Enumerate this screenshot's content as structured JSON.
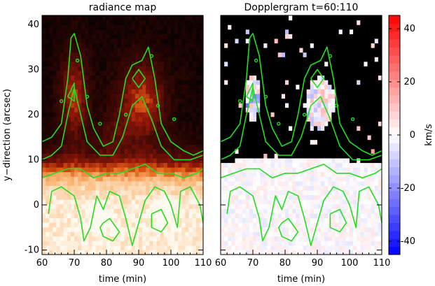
{
  "chart_data": [
    {
      "type": "heatmap",
      "title": "radiance map",
      "xlabel": "time (min)",
      "ylabel": "y−direction (arcsec)",
      "xlim": [
        60,
        110
      ],
      "ylim": [
        -11,
        42
      ],
      "x_ticks": [
        60,
        70,
        80,
        90,
        100,
        110
      ],
      "y_ticks": [
        -10,
        0,
        10,
        20,
        30,
        40
      ],
      "colormap": "black-red-orange-white",
      "contour_color": "#22dd22"
    },
    {
      "type": "heatmap",
      "title": "Dopplergram t=60:110",
      "xlabel": "time (min)",
      "xlim": [
        60,
        110
      ],
      "ylim": [
        -11,
        42
      ],
      "x_ticks": [
        60,
        70,
        80,
        90,
        100,
        110
      ],
      "y_ticks": [
        -10,
        0,
        10,
        20,
        30,
        40
      ],
      "colormap": "blue-white-red",
      "contour_color": "#22dd22",
      "colorbar": {
        "label": "km/s",
        "range": [
          -45,
          45
        ],
        "ticks": [
          -40,
          -20,
          0,
          20,
          40
        ],
        "colors": [
          "#0000ff",
          "#ffffff",
          "#ff0000"
        ]
      }
    }
  ]
}
